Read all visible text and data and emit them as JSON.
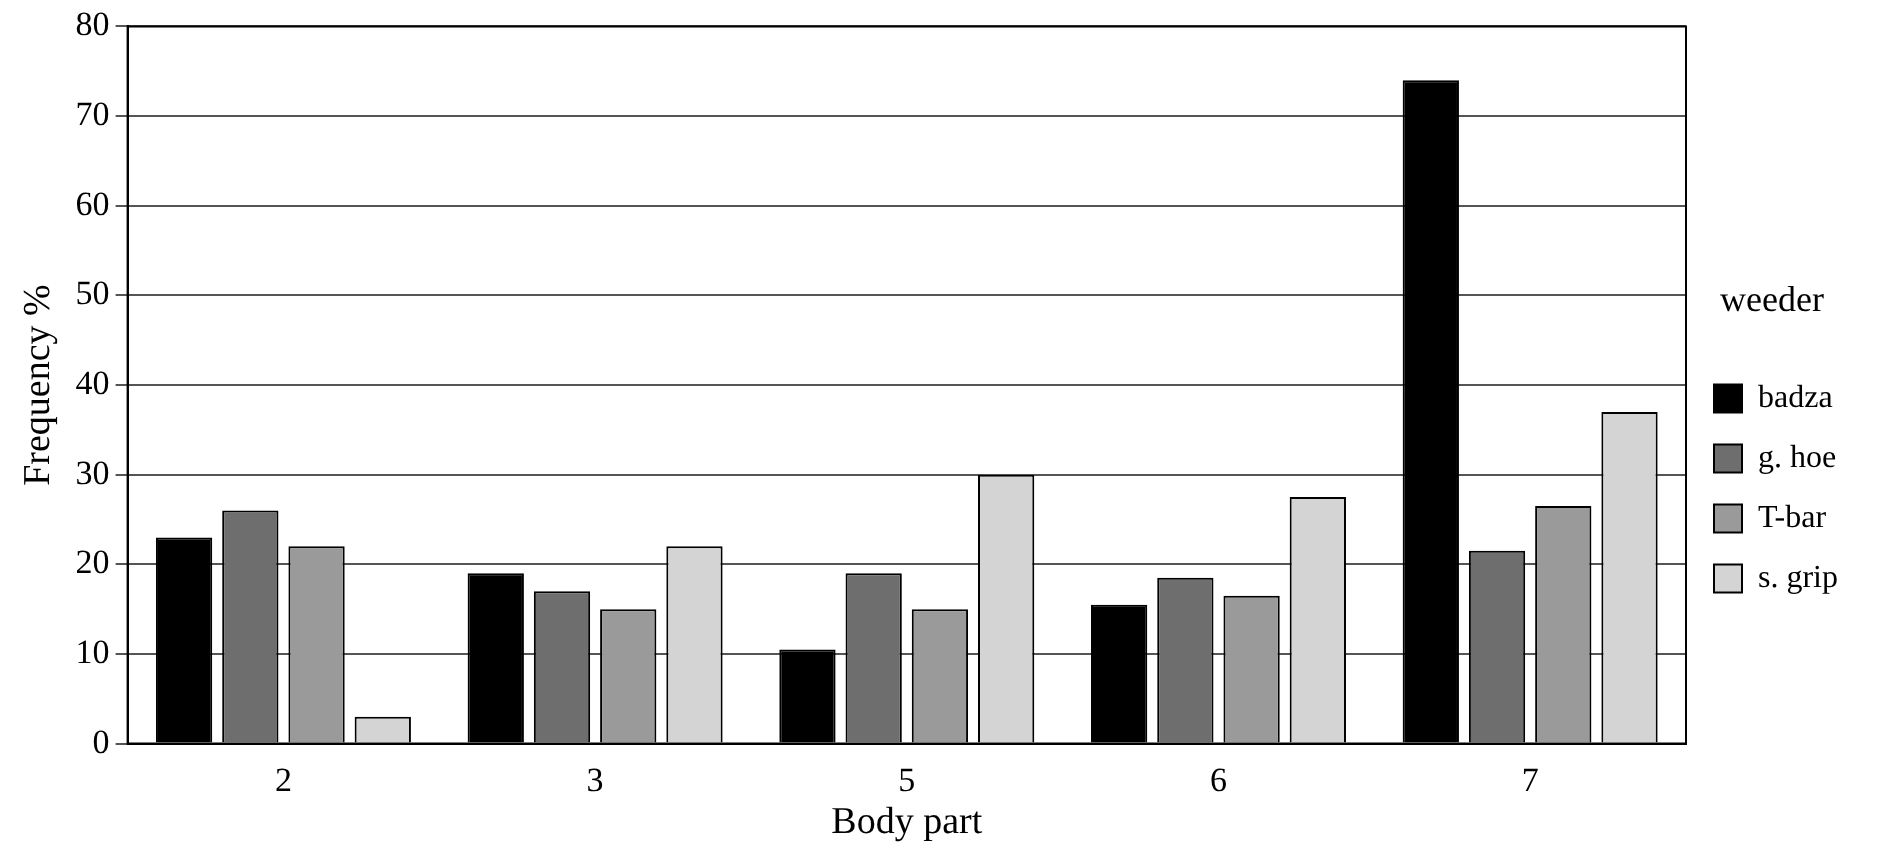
{
  "chart_data": {
    "type": "bar",
    "xlabel": "Body part",
    "ylabel": "Frequency %",
    "legend_title": "weeder",
    "categories": [
      "2",
      "3",
      "5",
      "6",
      "7"
    ],
    "series": [
      {
        "name": "badza",
        "color": "#000000",
        "values": [
          23,
          19,
          10.5,
          15.5,
          74
        ]
      },
      {
        "name": "g. hoe",
        "color": "#6e6e6e",
        "values": [
          26,
          17,
          19,
          18.5,
          21.5
        ]
      },
      {
        "name": "T-bar",
        "color": "#9a9a9a",
        "values": [
          22,
          15,
          15,
          16.5,
          26.5
        ]
      },
      {
        "name": "s. grip",
        "color": "#d4d4d4",
        "values": [
          3,
          22,
          30,
          27.5,
          37
        ]
      }
    ],
    "ylim": [
      0,
      80
    ],
    "yticks": [
      0,
      10,
      20,
      30,
      40,
      50,
      60,
      70,
      80
    ],
    "grid": "y",
    "legend": "right"
  }
}
